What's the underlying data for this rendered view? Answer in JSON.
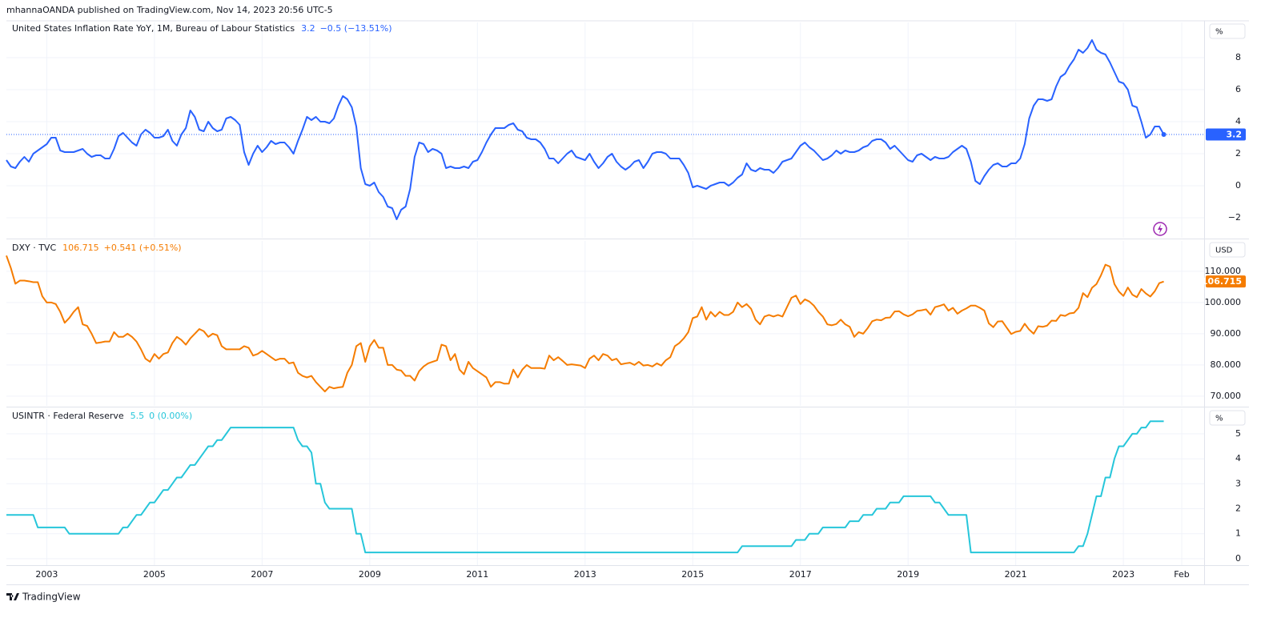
{
  "header": "mhannaOANDA published on TradingView.com, Nov 14, 2023 20:56 UTC-5",
  "footer": "TradingView",
  "chart_data": {
    "type": "line",
    "xlim": [
      "2002-04",
      "2024-07"
    ],
    "xticks": [
      {
        "value": "2003-01",
        "label": "2003"
      },
      {
        "value": "2005-01",
        "label": "2005"
      },
      {
        "value": "2007-01",
        "label": "2007"
      },
      {
        "value": "2009-01",
        "label": "2009"
      },
      {
        "value": "2011-01",
        "label": "2011"
      },
      {
        "value": "2013-01",
        "label": "2013"
      },
      {
        "value": "2015-01",
        "label": "2015"
      },
      {
        "value": "2017-01",
        "label": "2017"
      },
      {
        "value": "2019-01",
        "label": "2019"
      },
      {
        "value": "2021-01",
        "label": "2021"
      },
      {
        "value": "2023-01",
        "label": "2023"
      },
      {
        "value": "2024-02",
        "label": "Feb"
      }
    ],
    "grid": true,
    "x": [
      "2002-04",
      "2002-05",
      "2002-06",
      "2002-07",
      "2002-08",
      "2002-09",
      "2002-10",
      "2002-11",
      "2002-12",
      "2003-01",
      "2003-02",
      "2003-03",
      "2003-04",
      "2003-05",
      "2003-06",
      "2003-07",
      "2003-08",
      "2003-09",
      "2003-10",
      "2003-11",
      "2003-12",
      "2004-01",
      "2004-02",
      "2004-03",
      "2004-04",
      "2004-05",
      "2004-06",
      "2004-07",
      "2004-08",
      "2004-09",
      "2004-10",
      "2004-11",
      "2004-12",
      "2005-01",
      "2005-02",
      "2005-03",
      "2005-04",
      "2005-05",
      "2005-06",
      "2005-07",
      "2005-08",
      "2005-09",
      "2005-10",
      "2005-11",
      "2005-12",
      "2006-01",
      "2006-02",
      "2006-03",
      "2006-04",
      "2006-05",
      "2006-06",
      "2006-07",
      "2006-08",
      "2006-09",
      "2006-10",
      "2006-11",
      "2006-12",
      "2007-01",
      "2007-02",
      "2007-03",
      "2007-04",
      "2007-05",
      "2007-06",
      "2007-07",
      "2007-08",
      "2007-09",
      "2007-10",
      "2007-11",
      "2007-12",
      "2008-01",
      "2008-02",
      "2008-03",
      "2008-04",
      "2008-05",
      "2008-06",
      "2008-07",
      "2008-08",
      "2008-09",
      "2008-10",
      "2008-11",
      "2008-12",
      "2009-01",
      "2009-02",
      "2009-03",
      "2009-04",
      "2009-05",
      "2009-06",
      "2009-07",
      "2009-08",
      "2009-09",
      "2009-10",
      "2009-11",
      "2009-12",
      "2010-01",
      "2010-02",
      "2010-03",
      "2010-04",
      "2010-05",
      "2010-06",
      "2010-07",
      "2010-08",
      "2010-09",
      "2010-10",
      "2010-11",
      "2010-12",
      "2011-01",
      "2011-02",
      "2011-03",
      "2011-04",
      "2011-05",
      "2011-06",
      "2011-07",
      "2011-08",
      "2011-09",
      "2011-10",
      "2011-11",
      "2011-12",
      "2012-01",
      "2012-02",
      "2012-03",
      "2012-04",
      "2012-05",
      "2012-06",
      "2012-07",
      "2012-08",
      "2012-09",
      "2012-10",
      "2012-11",
      "2012-12",
      "2013-01",
      "2013-02",
      "2013-03",
      "2013-04",
      "2013-05",
      "2013-06",
      "2013-07",
      "2013-08",
      "2013-09",
      "2013-10",
      "2013-11",
      "2013-12",
      "2014-01",
      "2014-02",
      "2014-03",
      "2014-04",
      "2014-05",
      "2014-06",
      "2014-07",
      "2014-08",
      "2014-09",
      "2014-10",
      "2014-11",
      "2014-12",
      "2015-01",
      "2015-02",
      "2015-03",
      "2015-04",
      "2015-05",
      "2015-06",
      "2015-07",
      "2015-08",
      "2015-09",
      "2015-10",
      "2015-11",
      "2015-12",
      "2016-01",
      "2016-02",
      "2016-03",
      "2016-04",
      "2016-05",
      "2016-06",
      "2016-07",
      "2016-08",
      "2016-09",
      "2016-10",
      "2016-11",
      "2016-12",
      "2017-01",
      "2017-02",
      "2017-03",
      "2017-04",
      "2017-05",
      "2017-06",
      "2017-07",
      "2017-08",
      "2017-09",
      "2017-10",
      "2017-11",
      "2017-12",
      "2018-01",
      "2018-02",
      "2018-03",
      "2018-04",
      "2018-05",
      "2018-06",
      "2018-07",
      "2018-08",
      "2018-09",
      "2018-10",
      "2018-11",
      "2018-12",
      "2019-01",
      "2019-02",
      "2019-03",
      "2019-04",
      "2019-05",
      "2019-06",
      "2019-07",
      "2019-08",
      "2019-09",
      "2019-10",
      "2019-11",
      "2019-12",
      "2020-01",
      "2020-02",
      "2020-03",
      "2020-04",
      "2020-05",
      "2020-06",
      "2020-07",
      "2020-08",
      "2020-09",
      "2020-10",
      "2020-11",
      "2020-12",
      "2021-01",
      "2021-02",
      "2021-03",
      "2021-04",
      "2021-05",
      "2021-06",
      "2021-07",
      "2021-08",
      "2021-09",
      "2021-10",
      "2021-11",
      "2021-12",
      "2022-01",
      "2022-02",
      "2022-03",
      "2022-04",
      "2022-05",
      "2022-06",
      "2022-07",
      "2022-08",
      "2022-09",
      "2022-10",
      "2022-11",
      "2022-12",
      "2023-01",
      "2023-02",
      "2023-03",
      "2023-04",
      "2023-05",
      "2023-06",
      "2023-07",
      "2023-08",
      "2023-09",
      "2023-10"
    ],
    "panes": [
      {
        "name": "United States Inflation Rate YoY, 1M, Bureau of Labour Statistics",
        "change": "−0.5 (−13.51%)",
        "unit": "%",
        "color": "#2962ff",
        "price_line": true,
        "badge": true,
        "ylim": [
          -3.25,
          10.2
        ],
        "yticks": [
          {
            "value": -2,
            "label": "−2"
          },
          0,
          2,
          4,
          6,
          8
        ],
        "values": [
          1.6,
          1.2,
          1.1,
          1.5,
          1.8,
          1.5,
          2.0,
          2.2,
          2.4,
          2.6,
          3.0,
          3.0,
          2.2,
          2.1,
          2.1,
          2.1,
          2.2,
          2.3,
          2.0,
          1.8,
          1.9,
          1.9,
          1.7,
          1.7,
          2.3,
          3.1,
          3.3,
          3.0,
          2.7,
          2.5,
          3.2,
          3.5,
          3.3,
          3.0,
          3.0,
          3.1,
          3.5,
          2.8,
          2.5,
          3.2,
          3.6,
          4.7,
          4.3,
          3.5,
          3.4,
          4.0,
          3.6,
          3.4,
          3.5,
          4.2,
          4.3,
          4.1,
          3.8,
          2.1,
          1.3,
          2.0,
          2.5,
          2.1,
          2.4,
          2.8,
          2.6,
          2.7,
          2.7,
          2.4,
          2.0,
          2.8,
          3.5,
          4.3,
          4.1,
          4.3,
          4.0,
          4.0,
          3.9,
          4.2,
          5.0,
          5.6,
          5.4,
          4.9,
          3.7,
          1.1,
          0.1,
          0.0,
          0.2,
          -0.4,
          -0.7,
          -1.3,
          -1.4,
          -2.1,
          -1.5,
          -1.3,
          -0.2,
          1.8,
          2.7,
          2.6,
          2.1,
          2.3,
          2.2,
          2.0,
          1.1,
          1.2,
          1.1,
          1.1,
          1.2,
          1.1,
          1.5,
          1.6,
          2.1,
          2.7,
          3.2,
          3.6,
          3.6,
          3.6,
          3.8,
          3.9,
          3.5,
          3.4,
          3.0,
          2.9,
          2.9,
          2.7,
          2.3,
          1.7,
          1.7,
          1.4,
          1.7,
          2.0,
          2.2,
          1.8,
          1.7,
          1.6,
          2.0,
          1.5,
          1.1,
          1.4,
          1.8,
          2.0,
          1.5,
          1.2,
          1.0,
          1.2,
          1.5,
          1.6,
          1.1,
          1.5,
          2.0,
          2.1,
          2.1,
          2.0,
          1.7,
          1.7,
          1.7,
          1.3,
          0.8,
          -0.1,
          0.0,
          -0.1,
          -0.2,
          0.0,
          0.1,
          0.2,
          0.2,
          0.0,
          0.2,
          0.5,
          0.7,
          1.4,
          1.0,
          0.9,
          1.1,
          1.0,
          1.0,
          0.8,
          1.1,
          1.5,
          1.6,
          1.7,
          2.1,
          2.5,
          2.7,
          2.4,
          2.2,
          1.9,
          1.6,
          1.7,
          1.9,
          2.2,
          2.0,
          2.2,
          2.1,
          2.1,
          2.2,
          2.4,
          2.5,
          2.8,
          2.9,
          2.9,
          2.7,
          2.3,
          2.5,
          2.2,
          1.9,
          1.6,
          1.5,
          1.9,
          2.0,
          1.8,
          1.6,
          1.8,
          1.7,
          1.7,
          1.8,
          2.1,
          2.3,
          2.5,
          2.3,
          1.5,
          0.3,
          0.1,
          0.6,
          1.0,
          1.3,
          1.4,
          1.2,
          1.2,
          1.4,
          1.4,
          1.7,
          2.6,
          4.2,
          5.0,
          5.4,
          5.4,
          5.3,
          5.4,
          6.2,
          6.8,
          7.0,
          7.5,
          7.9,
          8.5,
          8.3,
          8.6,
          9.1,
          8.5,
          8.3,
          8.2,
          7.7,
          7.1,
          6.5,
          6.4,
          6.0,
          5.0,
          4.9,
          4.0,
          3.0,
          3.2,
          3.7,
          3.7,
          3.2
        ]
      },
      {
        "name": "DXY · TVC",
        "change": "+0.541 (+0.51%)",
        "unit": "USD",
        "color": "#f57c00",
        "price_line": false,
        "badge": true,
        "ylim": [
          66.9,
          119.7
        ],
        "yticks": [
          {
            "value": 70,
            "label": "70.000"
          },
          {
            "value": 80,
            "label": "80.000"
          },
          {
            "value": 90,
            "label": "90.000"
          },
          {
            "value": 100,
            "label": "100.000"
          },
          {
            "value": 110,
            "label": "110.000"
          }
        ],
        "values": [
          115,
          111,
          106,
          107,
          107,
          106.8,
          106.5,
          106.5,
          102,
          100,
          100,
          99.5,
          97,
          93.5,
          95,
          97,
          98.5,
          93,
          92.5,
          90,
          87,
          87.2,
          87.5,
          87.5,
          90.5,
          89,
          89,
          90,
          89,
          87.5,
          85,
          82,
          81,
          83.5,
          82,
          83.5,
          84,
          87,
          89,
          88,
          86.5,
          88.5,
          90,
          91.5,
          90.8,
          89,
          90,
          89.5,
          86,
          85,
          85,
          85,
          85,
          86,
          85.5,
          83,
          83.5,
          84.5,
          83.5,
          82.5,
          81.5,
          82,
          82,
          80.5,
          80.8,
          77.5,
          76.5,
          76,
          76.5,
          74.5,
          73,
          71.5,
          73,
          72.5,
          72.8,
          73,
          77.5,
          80,
          86,
          87,
          81,
          86,
          88,
          85.5,
          85.5,
          80,
          80,
          78.5,
          78.2,
          76.5,
          76.5,
          75,
          78,
          79.5,
          80.5,
          81,
          81.5,
          86.5,
          86,
          81.5,
          83.5,
          78.5,
          77,
          81,
          79,
          78,
          77,
          76,
          73,
          74.5,
          74.5,
          74,
          74,
          78.5,
          76,
          78.5,
          80,
          79,
          79,
          79,
          78.8,
          83,
          81.5,
          82.5,
          81.3,
          80,
          80.2,
          80,
          79.8,
          79,
          82,
          83,
          81.5,
          83.5,
          83,
          81.5,
          82,
          80.2,
          80.5,
          80.7,
          80,
          81,
          79.8,
          80,
          79.5,
          80.5,
          79.8,
          81.5,
          82.5,
          86,
          87,
          88.5,
          90.5,
          95,
          95.5,
          98.5,
          94.5,
          97,
          95.5,
          97,
          96,
          96,
          97,
          100,
          98.5,
          99.5,
          98,
          94.5,
          93,
          95.5,
          96,
          95.5,
          96,
          95.5,
          98.5,
          101.5,
          102.2,
          99.5,
          101,
          100.3,
          99,
          97,
          95.5,
          93,
          92.7,
          93.1,
          94.5,
          93,
          92.2,
          89,
          90.5,
          90,
          91.8,
          94,
          94.5,
          94.3,
          95.1,
          95.2,
          97.1,
          97.2,
          96.2,
          95.6,
          96.2,
          97.3,
          97.5,
          97.8,
          96.1,
          98.5,
          98.9,
          99.4,
          97.4,
          98.3,
          96.4,
          97.4,
          98.1,
          99,
          99,
          98.3,
          97.4,
          93.3,
          92.1,
          93.9,
          94,
          91.9,
          89.9,
          90.6,
          90.9,
          93.2,
          91.3,
          90,
          92.4,
          92.2,
          92.6,
          94.2,
          94.1,
          96,
          95.7,
          96.5,
          96.7,
          98.3,
          103,
          101.7,
          104.7,
          105.9,
          108.7,
          112.1,
          111.5,
          105.9,
          103.5,
          102.1,
          104.8,
          102.5,
          101.7,
          104.3,
          102.9,
          101.9,
          103.6,
          106.2,
          106.715
        ]
      },
      {
        "name": "USINTR · Federal Reserve",
        "change": "0 (0.00%)",
        "unit": "%",
        "color": "#26c6da",
        "price_line": false,
        "badge": false,
        "ylim": [
          -0.26,
          5.99
        ],
        "yticks": [
          0,
          1,
          2,
          3,
          4,
          5
        ],
        "values": [
          1.75,
          1.75,
          1.75,
          1.75,
          1.75,
          1.75,
          1.75,
          1.25,
          1.25,
          1.25,
          1.25,
          1.25,
          1.25,
          1.25,
          1.0,
          1.0,
          1.0,
          1.0,
          1.0,
          1.0,
          1.0,
          1.0,
          1.0,
          1.0,
          1.0,
          1.0,
          1.25,
          1.25,
          1.5,
          1.75,
          1.75,
          2.0,
          2.25,
          2.25,
          2.5,
          2.75,
          2.75,
          3.0,
          3.25,
          3.25,
          3.5,
          3.75,
          3.75,
          4.0,
          4.25,
          4.5,
          4.5,
          4.75,
          4.75,
          5.0,
          5.25,
          5.25,
          5.25,
          5.25,
          5.25,
          5.25,
          5.25,
          5.25,
          5.25,
          5.25,
          5.25,
          5.25,
          5.25,
          5.25,
          5.25,
          4.75,
          4.5,
          4.5,
          4.25,
          3.0,
          3.0,
          2.25,
          2.0,
          2.0,
          2.0,
          2.0,
          2.0,
          2.0,
          1.0,
          1.0,
          0.25,
          0.25,
          0.25,
          0.25,
          0.25,
          0.25,
          0.25,
          0.25,
          0.25,
          0.25,
          0.25,
          0.25,
          0.25,
          0.25,
          0.25,
          0.25,
          0.25,
          0.25,
          0.25,
          0.25,
          0.25,
          0.25,
          0.25,
          0.25,
          0.25,
          0.25,
          0.25,
          0.25,
          0.25,
          0.25,
          0.25,
          0.25,
          0.25,
          0.25,
          0.25,
          0.25,
          0.25,
          0.25,
          0.25,
          0.25,
          0.25,
          0.25,
          0.25,
          0.25,
          0.25,
          0.25,
          0.25,
          0.25,
          0.25,
          0.25,
          0.25,
          0.25,
          0.25,
          0.25,
          0.25,
          0.25,
          0.25,
          0.25,
          0.25,
          0.25,
          0.25,
          0.25,
          0.25,
          0.25,
          0.25,
          0.25,
          0.25,
          0.25,
          0.25,
          0.25,
          0.25,
          0.25,
          0.25,
          0.25,
          0.25,
          0.25,
          0.25,
          0.25,
          0.25,
          0.25,
          0.25,
          0.25,
          0.25,
          0.25,
          0.5,
          0.5,
          0.5,
          0.5,
          0.5,
          0.5,
          0.5,
          0.5,
          0.5,
          0.5,
          0.5,
          0.5,
          0.75,
          0.75,
          0.75,
          1.0,
          1.0,
          1.0,
          1.25,
          1.25,
          1.25,
          1.25,
          1.25,
          1.25,
          1.5,
          1.5,
          1.5,
          1.75,
          1.75,
          1.75,
          2.0,
          2.0,
          2.0,
          2.25,
          2.25,
          2.25,
          2.5,
          2.5,
          2.5,
          2.5,
          2.5,
          2.5,
          2.5,
          2.25,
          2.25,
          2.0,
          1.75,
          1.75,
          1.75,
          1.75,
          1.75,
          0.25,
          0.25,
          0.25,
          0.25,
          0.25,
          0.25,
          0.25,
          0.25,
          0.25,
          0.25,
          0.25,
          0.25,
          0.25,
          0.25,
          0.25,
          0.25,
          0.25,
          0.25,
          0.25,
          0.25,
          0.25,
          0.25,
          0.25,
          0.25,
          0.5,
          0.5,
          1.0,
          1.75,
          2.5,
          2.5,
          3.25,
          3.25,
          4.0,
          4.5,
          4.5,
          4.75,
          5.0,
          5.0,
          5.25,
          5.25,
          5.5,
          5.5,
          5.5,
          5.5
        ]
      }
    ]
  }
}
